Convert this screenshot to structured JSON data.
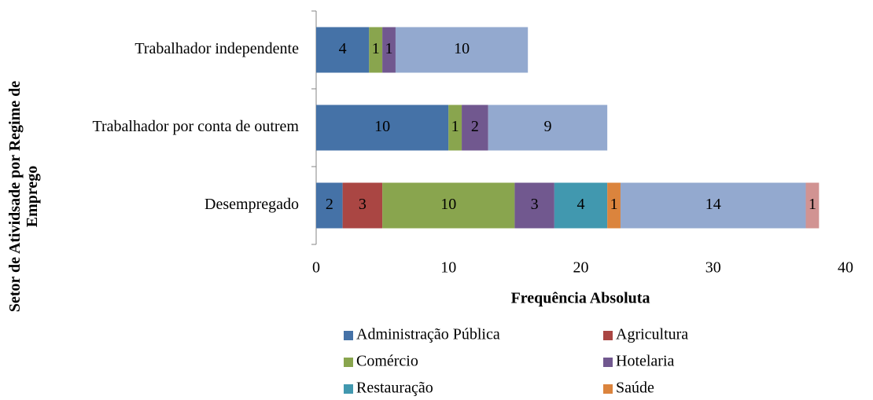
{
  "chart_data": {
    "type": "stacked-barh",
    "categories": [
      "Desempregado",
      "Trabalhador por conta de outrem",
      "Trabalhador independente"
    ],
    "series": [
      {
        "name": "Administração Pública",
        "color": "#4572a7",
        "values": [
          2,
          10,
          4
        ]
      },
      {
        "name": "Agricultura",
        "color": "#aa4643",
        "values": [
          3,
          null,
          null
        ]
      },
      {
        "name": "Comércio",
        "color": "#89a54e",
        "values": [
          10,
          1,
          1
        ]
      },
      {
        "name": "Hotelaria",
        "color": "#71588f",
        "values": [
          3,
          2,
          1
        ]
      },
      {
        "name": "Restauração",
        "color": "#4198af",
        "values": [
          4,
          null,
          null
        ]
      },
      {
        "name": "Saúde",
        "color": "#db843d",
        "values": [
          1,
          null,
          null
        ]
      },
      {
        "color": "#93a9cf",
        "values": [
          14,
          9,
          10
        ]
      },
      {
        "color": "#d19392",
        "values": [
          1,
          null,
          null
        ]
      }
    ],
    "xlabel": "Frequência Absoluta",
    "ylabel": "Setor de Atividsade por Regime de Emprego",
    "xlim": [
      0,
      40
    ],
    "xticks": [
      0,
      10,
      20,
      30,
      40
    ]
  }
}
